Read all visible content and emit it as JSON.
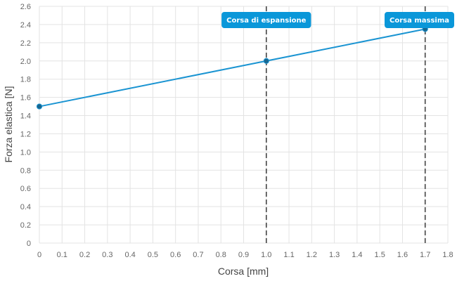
{
  "chart_data": {
    "type": "line",
    "title": "",
    "xlabel": "Corsa [mm]",
    "ylabel": "Forza elastica [N]",
    "xlim": [
      0,
      1.8
    ],
    "ylim": [
      0,
      2.6
    ],
    "x_ticks": [
      "0",
      "0.1",
      "0.2",
      "0.3",
      "0.4",
      "0.5",
      "0.6",
      "0.7",
      "0.8",
      "0.9",
      "1.0",
      "1.1",
      "1.2",
      "1.3",
      "1.4",
      "1.5",
      "1.6",
      "1.7",
      "1.8"
    ],
    "y_ticks": [
      "0",
      "0.2",
      "0.4",
      "0.6",
      "0.8",
      "1.0",
      "1.2",
      "1.4",
      "1.6",
      "1.8",
      "2.0",
      "2.2",
      "2.4",
      "2.6"
    ],
    "grid": true,
    "series": [
      {
        "color": "#1a94d2",
        "x": [
          0,
          1.0,
          1.7
        ],
        "y": [
          1.5,
          2.0,
          2.35
        ]
      }
    ],
    "annotations": [
      {
        "label": "Corsa di espansione",
        "x": 1.0,
        "color": "#0a97d9"
      },
      {
        "label": "Corsa massima",
        "x": 1.7,
        "color": "#0a97d9"
      }
    ],
    "colors": {
      "marker": "#19668f",
      "reference_line": "#444444"
    }
  }
}
